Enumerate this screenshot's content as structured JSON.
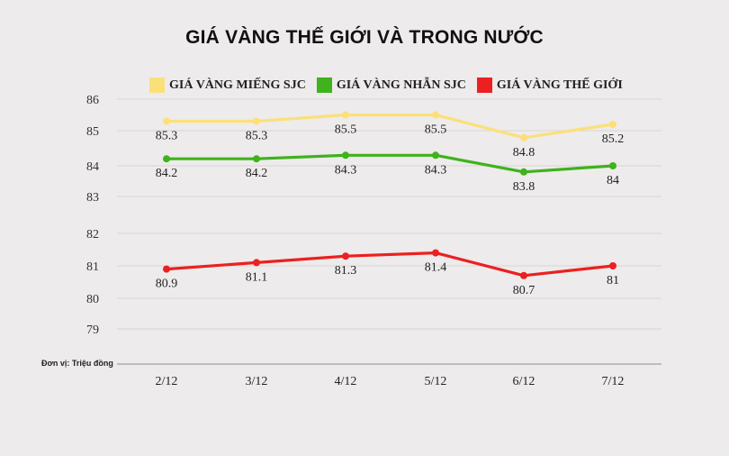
{
  "chart_data": {
    "type": "line",
    "title": "GIÁ VÀNG THẾ GIỚI VÀ TRONG NƯỚC",
    "categories": [
      "2/12",
      "3/12",
      "4/12",
      "5/12",
      "6/12",
      "7/12"
    ],
    "y_ticks": [
      "86",
      "85",
      "84",
      "83",
      "82",
      "81",
      "80",
      "79"
    ],
    "unit_note": "Đơn vị: Triệu đồng",
    "grid": true,
    "legend_position": "top",
    "series": [
      {
        "name": "GIÁ VÀNG MIẾNG SJC",
        "color": "#fbe07a",
        "values": [
          85.3,
          85.3,
          85.5,
          85.5,
          84.8,
          85.2
        ],
        "labels": [
          "85.3",
          "85.3",
          "85.5",
          "85.5",
          "84.8",
          "85.2"
        ]
      },
      {
        "name": "GIÁ VÀNG NHẪN SJC",
        "color": "#3fb21c",
        "values": [
          84.2,
          84.2,
          84.3,
          84.3,
          83.8,
          84
        ],
        "labels": [
          "84.2",
          "84.2",
          "84.3",
          "84.3",
          "83.8",
          "84"
        ]
      },
      {
        "name": "GIÁ VÀNG THẾ GIỚI",
        "color": "#ec2020",
        "values": [
          80.9,
          81.1,
          81.3,
          81.4,
          80.7,
          81
        ],
        "labels": [
          "80.9",
          "81.1",
          "81.3",
          "81.4",
          "80.7",
          "81"
        ]
      }
    ]
  }
}
